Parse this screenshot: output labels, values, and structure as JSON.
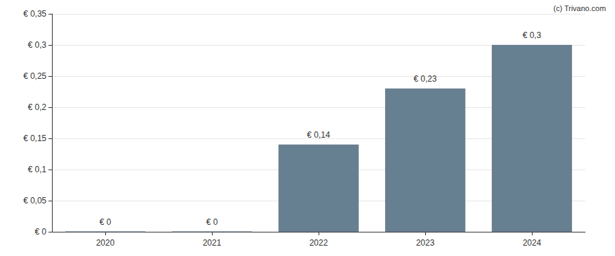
{
  "chart_data": {
    "type": "bar",
    "annotations": [
      "(c) Trivano.com"
    ],
    "categories": [
      "2020",
      "2021",
      "2022",
      "2023",
      "2024"
    ],
    "values": [
      0,
      0,
      0.14,
      0.23,
      0.3
    ],
    "value_labels": [
      "€ 0",
      "€ 0",
      "€ 0,14",
      "€ 0,23",
      "€ 0,3"
    ],
    "color": "#667f91",
    "ylim": [
      0,
      0.35
    ],
    "yticks": [
      {
        "value": 0,
        "label": "€ 0"
      },
      {
        "value": 0.05,
        "label": "€ 0,05"
      },
      {
        "value": 0.1,
        "label": "€ 0,1"
      },
      {
        "value": 0.15,
        "label": "€ 0,15"
      },
      {
        "value": 0.2,
        "label": "€ 0,2"
      },
      {
        "value": 0.25,
        "label": "€ 0,25"
      },
      {
        "value": 0.3,
        "label": "€ 0,3"
      },
      {
        "value": 0.35,
        "label": "€ 0,35"
      }
    ],
    "grid": true,
    "data_labels": true
  }
}
